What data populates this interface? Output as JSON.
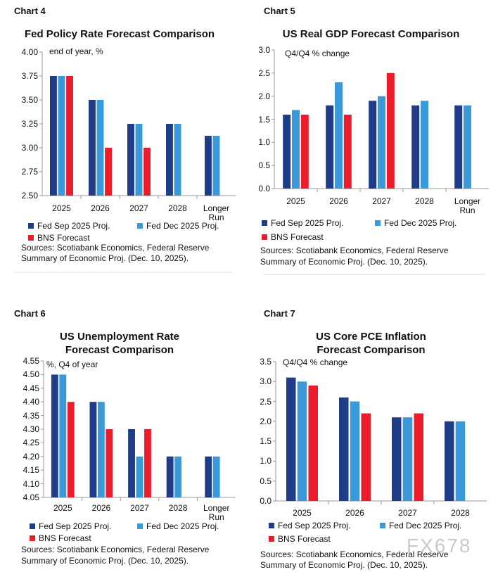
{
  "chart_data": [
    {
      "type": "bar",
      "chart_label": "Chart 4",
      "title": [
        "Fed Policy Rate Forecast Comparison"
      ],
      "unit_label": "end of year, %",
      "categories": [
        "2025",
        "2026",
        "2027",
        "2028",
        "Longer Run"
      ],
      "series": [
        {
          "name": "Fed Sep 2025 Proj.",
          "color": "#1f3c88",
          "values": [
            3.75,
            3.5,
            3.25,
            3.25,
            3.125
          ]
        },
        {
          "name": "Fed Dec 2025 Proj.",
          "color": "#3a9ad9",
          "values": [
            3.75,
            3.5,
            3.25,
            3.25,
            3.125
          ]
        },
        {
          "name": "BNS Forecast",
          "color": "#ec1c2d",
          "values": [
            3.75,
            3.0,
            3.0,
            null,
            null
          ]
        }
      ],
      "ylim": [
        2.5,
        4.0
      ],
      "yticks": [
        {
          "value": 2.5,
          "label": "2.50"
        },
        2.75,
        {
          "value": 3.0,
          "label": "3.00"
        },
        3.25,
        {
          "value": 3.5,
          "label": "3.50"
        },
        3.75,
        {
          "value": 4.0,
          "label": "4.00"
        }
      ],
      "source": [
        "Sources: Scotiabank Economics, Federal Reserve",
        "Summary of Economic Proj. (Dec. 10, 2025)."
      ]
    },
    {
      "type": "bar",
      "chart_label": "Chart 5",
      "title": [
        "US Real GDP Forecast Comparison"
      ],
      "unit_label": "Q4/Q4 % change",
      "categories": [
        "2025",
        "2026",
        "2027",
        "2028",
        "Longer Run"
      ],
      "series": [
        {
          "name": "Fed Sep 2025 Proj.",
          "color": "#1f3c88",
          "values": [
            1.6,
            1.8,
            1.9,
            1.8,
            1.8
          ]
        },
        {
          "name": "Fed Dec 2025 Proj.",
          "color": "#3a9ad9",
          "values": [
            1.7,
            2.3,
            2.0,
            1.9,
            1.8
          ]
        },
        {
          "name": "BNS Forecast",
          "color": "#ec1c2d",
          "values": [
            1.6,
            1.6,
            2.5,
            null,
            null
          ]
        }
      ],
      "ylim": [
        0,
        3
      ],
      "yticks": [
        {
          "value": 0,
          "label": "0.0"
        },
        0.5,
        {
          "value": 1,
          "label": "1.0"
        },
        1.5,
        {
          "value": 2,
          "label": "2.0"
        },
        2.5,
        {
          "value": 3,
          "label": "3.0"
        }
      ],
      "source": [
        "Sources: Scotiabank Economics, Federal Reserve",
        "Summary of Economic Proj. (Dec. 10, 2025)."
      ]
    },
    {
      "type": "bar",
      "chart_label": "Chart 6",
      "title": [
        "US Unemployment Rate",
        "Forecast Comparison"
      ],
      "unit_label": "%, Q4 of year",
      "categories": [
        "2025",
        "2026",
        "2027",
        "2028",
        "Longer Run"
      ],
      "series": [
        {
          "name": "Fed Sep 2025 Proj.",
          "color": "#1f3c88",
          "values": [
            4.5,
            4.4,
            4.3,
            4.2,
            4.2
          ]
        },
        {
          "name": "Fed Dec 2025 Proj.",
          "color": "#3a9ad9",
          "values": [
            4.5,
            4.4,
            4.2,
            4.2,
            4.2
          ]
        },
        {
          "name": "BNS Forecast",
          "color": "#ec1c2d",
          "values": [
            4.4,
            4.3,
            4.3,
            null,
            null
          ]
        }
      ],
      "ylim": [
        4.05,
        4.55
      ],
      "yticks": [
        4.05,
        {
          "value": 4.1,
          "label": "4.10"
        },
        4.15,
        {
          "value": 4.2,
          "label": "4.20"
        },
        4.25,
        {
          "value": 4.3,
          "label": "4.30"
        },
        4.35,
        {
          "value": 4.4,
          "label": "4.40"
        },
        4.45,
        {
          "value": 4.5,
          "label": "4.50"
        },
        4.55
      ],
      "source": [
        "Sources: Scotiabank Economics, Federal Reserve",
        "Summary of Economic Proj. (Dec. 10, 2025)."
      ]
    },
    {
      "type": "bar",
      "chart_label": "Chart 7",
      "title": [
        "US Core PCE Inflation",
        "Forecast Comparison"
      ],
      "unit_label": "Q4/Q4 % change",
      "categories": [
        "2025",
        "2026",
        "2027",
        "2028"
      ],
      "series": [
        {
          "name": "Fed Sep 2025 Proj.",
          "color": "#1f3c88",
          "values": [
            3.1,
            2.6,
            2.1,
            2.0
          ]
        },
        {
          "name": "Fed Dec 2025 Proj.",
          "color": "#3a9ad9",
          "values": [
            3.0,
            2.5,
            2.1,
            2.0
          ]
        },
        {
          "name": "BNS Forecast",
          "color": "#ec1c2d",
          "values": [
            2.9,
            2.2,
            2.2,
            null
          ]
        }
      ],
      "ylim": [
        0,
        3.5
      ],
      "yticks": [
        {
          "value": 0,
          "label": "0.0"
        },
        0.5,
        {
          "value": 1,
          "label": "1.0"
        },
        1.5,
        {
          "value": 2,
          "label": "2.0"
        },
        2.5,
        {
          "value": 3,
          "label": "3.0"
        },
        3.5
      ],
      "source": [
        "Sources: Scotiabank Economics, Federal Reserve",
        "Summary of Economic Proj. (Dec. 10, 2025)."
      ]
    }
  ],
  "watermark": "FX678"
}
